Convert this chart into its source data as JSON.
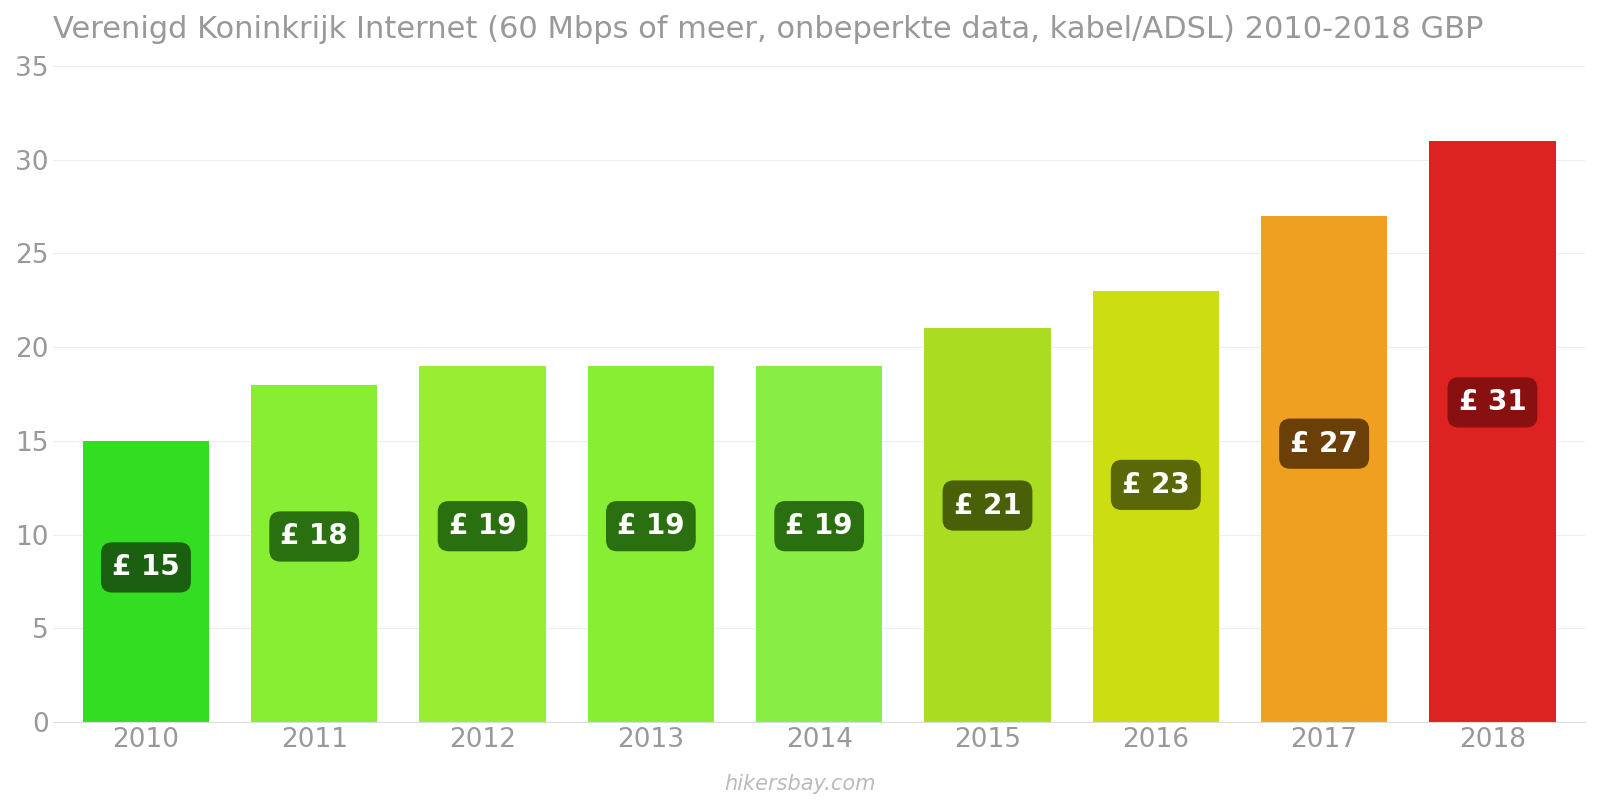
{
  "title": "Verenigd Koninkrijk Internet (60 Mbps of meer, onbeperkte data, kabel/ADSL) 2010-2018 GBP",
  "years": [
    2010,
    2011,
    2012,
    2013,
    2014,
    2015,
    2016,
    2017,
    2018
  ],
  "values": [
    15,
    18,
    19,
    19,
    19,
    21,
    23,
    27,
    31
  ],
  "bar_colors": [
    "#33dd22",
    "#88ee33",
    "#99ee33",
    "#88ee33",
    "#88ee44",
    "#aadd22",
    "#ccdd11",
    "#f0a020",
    "#dd2222"
  ],
  "label_bg_colors": [
    "#1a6010",
    "#2a7010",
    "#2a7010",
    "#2a7010",
    "#2a7010",
    "#4a6008",
    "#5a6808",
    "#6a4008",
    "#881010"
  ],
  "labels": [
    "£ 15",
    "£ 18",
    "£ 19",
    "£ 19",
    "£ 19",
    "£ 21",
    "£ 23",
    "£ 27",
    "£ 31"
  ],
  "ylim": [
    0,
    35
  ],
  "yticks": [
    0,
    5,
    10,
    15,
    20,
    25,
    30,
    35
  ],
  "watermark": "hikersbay.com",
  "background_color": "#ffffff",
  "title_color": "#999999",
  "tick_color": "#999999"
}
